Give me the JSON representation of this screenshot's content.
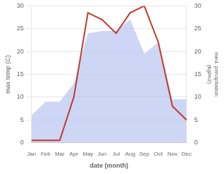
{
  "chart_data": {
    "type": "line",
    "categories": [
      "Jan",
      "Feb",
      "Mar",
      "Apr",
      "May",
      "Jun",
      "Jul",
      "Aug",
      "Sep",
      "Oct",
      "Nov",
      "Dec"
    ],
    "xlabel": "date (month)",
    "ylabel": "max temp (C)",
    "y2label": "med. precipitation\n(kg/m2)",
    "series": [
      {
        "type": "area",
        "color": "#b8c4f0",
        "axis": "y2",
        "values": [
          6.0,
          9.0,
          9.0,
          13.0,
          24.0,
          24.5,
          24.5,
          27.0,
          19.5,
          22.0,
          9.5,
          9.5
        ]
      },
      {
        "type": "line",
        "color": "#c0392b",
        "values": [
          0.5,
          0.5,
          0.5,
          10.0,
          28.5,
          27.0,
          24.0,
          28.5,
          30.0,
          22.0,
          8.0,
          5.0
        ]
      }
    ],
    "ylim": [
      0,
      30
    ],
    "yticks": [
      0,
      5,
      10,
      15,
      20,
      25,
      30
    ],
    "y2lim": [
      0,
      30
    ],
    "y2ticks": [
      0,
      5,
      10,
      15,
      20,
      25,
      30
    ],
    "grid": true
  }
}
